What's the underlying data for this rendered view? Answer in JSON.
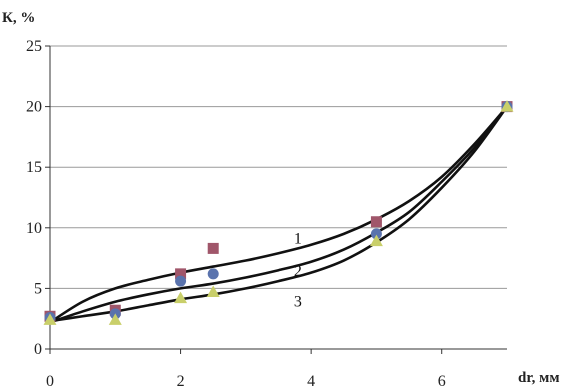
{
  "chart_data": {
    "type": "scatter",
    "ylabel": "К, %",
    "xlabel": "dr, мм",
    "xlim": [
      0,
      7
    ],
    "ylim": [
      0,
      25
    ],
    "x_ticks": [
      0,
      2,
      4,
      6
    ],
    "y_ticks": [
      0,
      5,
      10,
      15,
      20,
      25
    ],
    "grid": "horizontal",
    "legend": "none",
    "series": [
      {
        "name": "1",
        "marker": "square",
        "color": "#a0566a",
        "x": [
          0,
          1,
          2,
          2.5,
          5,
          7
        ],
        "y": [
          2.7,
          3.2,
          6.2,
          8.3,
          10.5,
          20
        ],
        "fit_x": [
          0,
          0.5,
          1,
          1.5,
          2,
          2.5,
          3,
          3.5,
          4,
          4.5,
          5,
          5.5,
          6,
          6.5,
          7
        ],
        "fit_y": [
          2.2,
          3.9,
          5.0,
          5.7,
          6.3,
          6.8,
          7.3,
          7.9,
          8.6,
          9.5,
          10.7,
          12.2,
          14.2,
          16.9,
          20
        ]
      },
      {
        "name": "2",
        "marker": "circle",
        "color": "#5a73ad",
        "x": [
          0,
          1,
          2,
          2.5,
          5,
          7
        ],
        "y": [
          2.6,
          2.9,
          5.6,
          6.2,
          9.5,
          20
        ],
        "fit_x": [
          0,
          0.5,
          1,
          1.5,
          2,
          2.5,
          3,
          3.5,
          4,
          4.5,
          5,
          5.5,
          6,
          6.5,
          7
        ],
        "fit_y": [
          2.2,
          3.1,
          3.9,
          4.5,
          5.0,
          5.4,
          5.9,
          6.5,
          7.2,
          8.2,
          9.6,
          11.3,
          13.8,
          16.6,
          20
        ]
      },
      {
        "name": "3",
        "marker": "triangle",
        "color": "#c9cf6a",
        "x": [
          0,
          1,
          2,
          2.5,
          5,
          7
        ],
        "y": [
          2.4,
          2.4,
          4.2,
          4.7,
          8.9,
          20
        ],
        "fit_x": [
          0,
          0.5,
          1,
          1.5,
          2,
          2.5,
          3,
          3.5,
          4,
          4.5,
          5,
          5.5,
          6,
          6.5,
          7
        ],
        "fit_y": [
          2.3,
          2.7,
          3.1,
          3.6,
          4.1,
          4.5,
          5.0,
          5.6,
          6.3,
          7.3,
          8.8,
          10.7,
          13.3,
          16.3,
          20
        ]
      }
    ],
    "curve_labels": [
      {
        "text": "1",
        "x": 3.0,
        "y": 9.2
      },
      {
        "text": "2",
        "x": 3.0,
        "y": 6.5
      },
      {
        "text": "3",
        "x": 3.0,
        "y": 4.0
      }
    ]
  }
}
